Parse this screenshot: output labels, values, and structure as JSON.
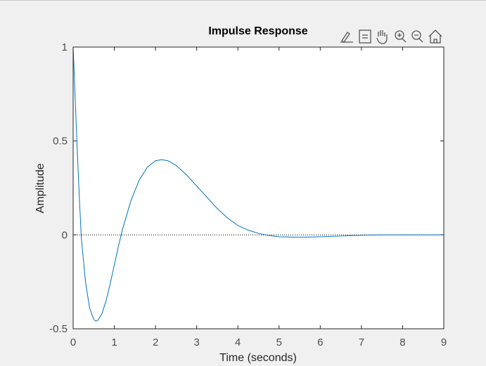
{
  "chart_data": {
    "type": "line",
    "title": "Impulse Response",
    "xlabel": "Time (seconds)",
    "ylabel": "Amplitude",
    "x": [
      0,
      0.05,
      0.1,
      0.15,
      0.2,
      0.3,
      0.4,
      0.5,
      0.55,
      0.6,
      0.7,
      0.8,
      0.9,
      1.0,
      1.1,
      1.2,
      1.4,
      1.6,
      1.8,
      2.0,
      2.15,
      2.3,
      2.5,
      2.75,
      3.0,
      3.25,
      3.5,
      3.75,
      4.0,
      4.25,
      4.5,
      4.75,
      5.0,
      5.5,
      6.0,
      6.5,
      7.0,
      7.5,
      8.0,
      9.0
    ],
    "series": [
      {
        "color": "#0072bd",
        "values": [
          1,
          0.72,
          0.45,
          0.2,
          -0.02,
          -0.25,
          -0.39,
          -0.45,
          -0.46,
          -0.455,
          -0.42,
          -0.35,
          -0.26,
          -0.16,
          -0.06,
          0.03,
          0.18,
          0.29,
          0.36,
          0.395,
          0.4,
          0.395,
          0.37,
          0.32,
          0.26,
          0.2,
          0.14,
          0.09,
          0.05,
          0.025,
          0.008,
          -0.003,
          -0.01,
          -0.013,
          -0.01,
          -0.006,
          -0.002,
          0,
          0,
          0
        ]
      }
    ],
    "xlim": [
      0,
      9
    ],
    "xticks": [
      0,
      1,
      2,
      3,
      4,
      5,
      6,
      7,
      8,
      9
    ],
    "ylim": [
      -0.5,
      1
    ],
    "yticks": [
      -0.5,
      0,
      0.5,
      1
    ],
    "zero_line": true,
    "grid": false
  }
}
